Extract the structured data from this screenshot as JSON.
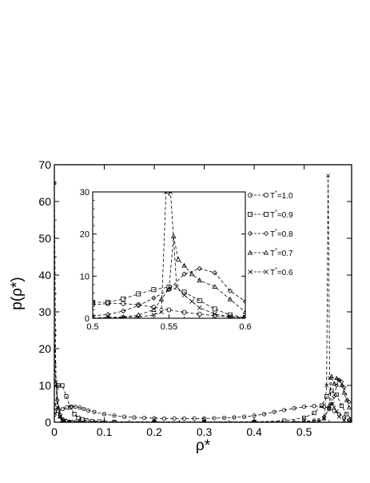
{
  "chart_data": [
    {
      "type": "line",
      "xlabel": "ρ*",
      "ylabel": "p(ρ*)",
      "xlim": [
        0,
        0.595
      ],
      "ylim": [
        0,
        70
      ],
      "xticks": [
        "0",
        "0.1",
        "0.2",
        "0.3",
        "0.4",
        "0.5"
      ],
      "yticks": [
        "0",
        "10",
        "20",
        "30",
        "40",
        "50",
        "60",
        "70"
      ],
      "grid": false,
      "legend_position": "inside-right",
      "series": [
        {
          "name": "T*=1.0",
          "marker": "circle",
          "line": "dashed",
          "x": [
            0.0,
            0.008,
            0.017,
            0.025,
            0.034,
            0.042,
            0.051,
            0.059,
            0.068,
            0.08,
            0.1,
            0.12,
            0.14,
            0.16,
            0.18,
            0.2,
            0.22,
            0.24,
            0.26,
            0.28,
            0.3,
            0.32,
            0.34,
            0.36,
            0.38,
            0.4,
            0.42,
            0.44,
            0.46,
            0.48,
            0.5,
            0.52,
            0.54,
            0.55,
            0.56,
            0.57,
            0.58,
            0.59
          ],
          "y": [
            2.0,
            3.0,
            3.6,
            4.0,
            4.3,
            4.2,
            4.0,
            3.6,
            3.2,
            2.8,
            2.2,
            1.8,
            1.5,
            1.3,
            1.2,
            1.1,
            1.0,
            1.0,
            1.0,
            1.0,
            1.0,
            1.1,
            1.2,
            1.3,
            1.5,
            1.8,
            2.2,
            2.8,
            3.3,
            3.8,
            4.2,
            4.4,
            4.2,
            3.8,
            3.0,
            2.2,
            1.3,
            0.6
          ]
        },
        {
          "name": "T*=0.9",
          "marker": "square",
          "line": "dashed",
          "x": [
            0.0,
            0.008,
            0.016,
            0.024,
            0.032,
            0.04,
            0.048,
            0.056,
            0.064,
            0.075,
            0.09,
            0.12,
            0.2,
            0.3,
            0.4,
            0.46,
            0.5,
            0.52,
            0.535,
            0.545,
            0.555,
            0.565,
            0.575,
            0.585,
            0.595
          ],
          "y": [
            3.0,
            10.0,
            10.0,
            7.0,
            4.0,
            2.2,
            1.2,
            0.8,
            0.5,
            0.3,
            0.2,
            0.1,
            0.05,
            0.05,
            0.1,
            0.4,
            1.2,
            2.5,
            4.5,
            7.0,
            8.5,
            7.5,
            4.5,
            2.2,
            0.8
          ]
        },
        {
          "name": "T*=0.8",
          "marker": "diamond",
          "line": "dashed",
          "x": [
            0.0,
            0.006,
            0.012,
            0.018,
            0.024,
            0.03,
            0.036,
            0.042,
            0.05,
            0.06,
            0.08,
            0.12,
            0.2,
            0.3,
            0.4,
            0.48,
            0.52,
            0.54,
            0.55,
            0.56,
            0.565,
            0.57,
            0.575,
            0.58,
            0.59
          ],
          "y": [
            16.0,
            6.0,
            2.0,
            0.8,
            0.4,
            0.2,
            0.1,
            0.1,
            0.05,
            0.05,
            0.05,
            0.05,
            0.05,
            0.05,
            0.05,
            0.1,
            0.5,
            1.5,
            3.5,
            7.0,
            10.0,
            11.5,
            11.0,
            9.5,
            5.5
          ]
        },
        {
          "name": "T*=0.7",
          "marker": "triangle",
          "line": "dashed",
          "x": [
            0.0,
            0.004,
            0.008,
            0.012,
            0.016,
            0.02,
            0.03,
            0.05,
            0.1,
            0.2,
            0.3,
            0.4,
            0.5,
            0.53,
            0.54,
            0.55,
            0.555,
            0.56,
            0.565,
            0.57,
            0.575,
            0.58,
            0.585,
            0.59
          ],
          "y": [
            24.0,
            10.0,
            4.0,
            1.5,
            0.5,
            0.2,
            0.1,
            0.05,
            0.05,
            0.05,
            0.05,
            0.05,
            0.1,
            0.3,
            1.0,
            4.5,
            12.5,
            10.5,
            12.0,
            11.5,
            10.0,
            8.0,
            6.0,
            4.0
          ]
        },
        {
          "name": "T*=0.6",
          "marker": "x",
          "line": "dashed",
          "x": [
            0.0,
            0.003,
            0.006,
            0.01,
            0.015,
            0.02,
            0.03,
            0.05,
            0.1,
            0.2,
            0.3,
            0.4,
            0.5,
            0.53,
            0.54,
            0.545,
            0.548,
            0.551,
            0.554,
            0.557,
            0.56,
            0.565,
            0.57,
            0.58,
            0.59
          ],
          "y": [
            65.0,
            11.0,
            4.0,
            1.5,
            0.5,
            0.2,
            0.1,
            0.05,
            0.05,
            0.05,
            0.05,
            0.05,
            0.05,
            0.2,
            1.0,
            10.0,
            67.0,
            12.0,
            5.0,
            5.0,
            4.0,
            3.0,
            1.5,
            0.5,
            0.2
          ]
        }
      ]
    },
    {
      "type": "line",
      "xlabel": "",
      "ylabel": "",
      "xlim": [
        0.5,
        0.6
      ],
      "ylim": [
        0,
        30
      ],
      "xticks": [
        "0.5",
        "0.55",
        "0.6"
      ],
      "yticks": [
        "0",
        "10",
        "20",
        "30"
      ],
      "grid": false,
      "series": [
        {
          "name": "T*=1.0",
          "marker": "circle",
          "line": "dashed",
          "x": [
            0.5,
            0.51,
            0.52,
            0.53,
            0.54,
            0.55,
            0.56,
            0.57,
            0.58,
            0.59,
            0.6
          ],
          "y": [
            3.2,
            3.5,
            3.5,
            3.2,
            2.6,
            2.0,
            1.4,
            1.0,
            0.6,
            0.3,
            0.1
          ]
        },
        {
          "name": "T*=0.9",
          "marker": "square",
          "line": "dashed",
          "x": [
            0.5,
            0.51,
            0.52,
            0.53,
            0.54,
            0.55,
            0.56,
            0.57,
            0.58,
            0.59,
            0.6
          ],
          "y": [
            3.8,
            3.8,
            4.6,
            5.8,
            6.8,
            7.4,
            6.2,
            4.2,
            2.2,
            0.8,
            0.2
          ]
        },
        {
          "name": "T*=0.8",
          "marker": "diamond",
          "line": "dashed",
          "x": [
            0.5,
            0.51,
            0.52,
            0.53,
            0.54,
            0.55,
            0.56,
            0.57,
            0.58,
            0.59,
            0.6
          ],
          "y": [
            0.6,
            0.9,
            1.7,
            3.0,
            4.8,
            6.8,
            10.5,
            11.8,
            10.8,
            6.5,
            4.0
          ]
        },
        {
          "name": "T*=0.7",
          "marker": "triangle",
          "line": "dashed",
          "x": [
            0.5,
            0.51,
            0.52,
            0.53,
            0.54,
            0.545,
            0.55,
            0.553,
            0.556,
            0.56,
            0.565,
            0.57,
            0.58,
            0.59,
            0.6
          ],
          "y": [
            0.1,
            0.2,
            0.3,
            0.8,
            2.0,
            4.5,
            7.0,
            19.5,
            14.0,
            12.5,
            10.5,
            9.0,
            7.5,
            4.5,
            1.5
          ]
        },
        {
          "name": "T*=0.6",
          "marker": "x",
          "line": "dashed",
          "x": [
            0.5,
            0.51,
            0.52,
            0.53,
            0.54,
            0.545,
            0.548,
            0.551,
            0.555,
            0.56,
            0.565,
            0.57,
            0.58,
            0.59,
            0.6
          ],
          "y": [
            0.1,
            0.1,
            0.2,
            0.3,
            0.8,
            1.5,
            30.0,
            30.0,
            7.5,
            5.5,
            4.0,
            2.5,
            1.0,
            0.4,
            0.1
          ]
        }
      ]
    }
  ]
}
